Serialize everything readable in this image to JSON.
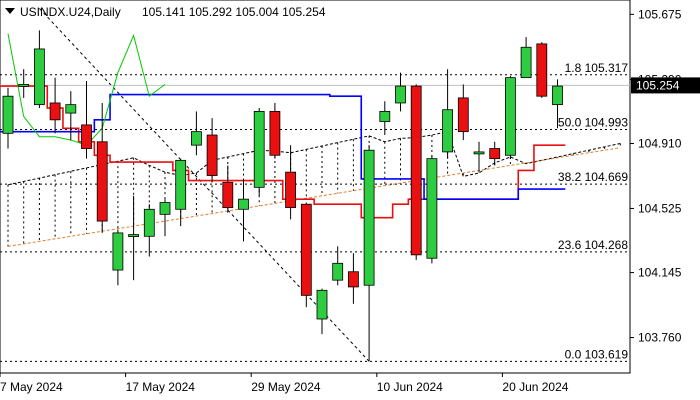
{
  "header": {
    "symbol": "USINDX.U24,Daily",
    "ohlc": "105.141 105.292 105.004 105.254"
  },
  "colors": {
    "bull": "#2ecc40",
    "bear": "#e81010",
    "tenkan": "#e81010",
    "kijun": "#0000ff",
    "chikou": "#00cc00",
    "price_line": "#c0c0c0",
    "price_badge_bg": "#000000",
    "price_badge_fg": "#ffffff"
  },
  "chart_data": {
    "type": "candlestick",
    "ylim": [
      103.55,
      105.76
    ],
    "yticks": [
      "105.675",
      "105.290",
      "104.910",
      "104.525",
      "104.145",
      "103.760"
    ],
    "xticks": [
      "7 May 2024",
      "17 May 2024",
      "29 May 2024",
      "10 Jun 2024",
      "20 Jun 2024"
    ],
    "current_price": "105.254",
    "fibonacci": [
      {
        "label": "1.8 105.317",
        "value": 105.317
      },
      {
        "label": "50.0 104.993",
        "value": 104.993
      },
      {
        "label": "38.2 104.669",
        "value": 104.669
      },
      {
        "label": "23.6 104.268",
        "value": 104.268
      },
      {
        "label": "0.0 103.619",
        "value": 103.619
      }
    ],
    "candles": [
      {
        "o": 104.97,
        "h": 105.24,
        "l": 104.88,
        "c": 105.19
      },
      {
        "o": 105.26,
        "h": 105.35,
        "l": 105.18,
        "c": 105.26
      },
      {
        "o": 105.14,
        "h": 105.58,
        "l": 105.12,
        "c": 105.47
      },
      {
        "o": 105.15,
        "h": 105.3,
        "l": 104.97,
        "c": 105.05
      },
      {
        "o": 105.09,
        "h": 105.22,
        "l": 104.93,
        "c": 105.14
      },
      {
        "o": 105.02,
        "h": 105.28,
        "l": 104.82,
        "c": 104.88
      },
      {
        "o": 104.92,
        "h": 105.15,
        "l": 104.38,
        "c": 104.45
      },
      {
        "o": 104.16,
        "h": 104.4,
        "l": 104.07,
        "c": 104.38
      },
      {
        "o": 104.37,
        "h": 104.6,
        "l": 104.1,
        "c": 104.37
      },
      {
        "o": 104.36,
        "h": 104.55,
        "l": 104.24,
        "c": 104.52
      },
      {
        "o": 104.49,
        "h": 104.58,
        "l": 104.36,
        "c": 104.56
      },
      {
        "o": 104.52,
        "h": 104.82,
        "l": 104.42,
        "c": 104.81
      },
      {
        "o": 104.9,
        "h": 105.1,
        "l": 104.84,
        "c": 104.98
      },
      {
        "o": 104.96,
        "h": 105.06,
        "l": 104.68,
        "c": 104.72
      },
      {
        "o": 104.68,
        "h": 104.78,
        "l": 104.5,
        "c": 104.53
      },
      {
        "o": 104.52,
        "h": 104.7,
        "l": 104.33,
        "c": 104.58
      },
      {
        "o": 104.65,
        "h": 105.12,
        "l": 104.6,
        "c": 105.1
      },
      {
        "o": 105.1,
        "h": 105.15,
        "l": 104.82,
        "c": 104.84
      },
      {
        "o": 104.74,
        "h": 104.9,
        "l": 104.46,
        "c": 104.53
      },
      {
        "o": 104.55,
        "h": 104.56,
        "l": 103.94,
        "c": 104.01
      },
      {
        "o": 103.87,
        "h": 104.05,
        "l": 103.78,
        "c": 104.04
      },
      {
        "o": 104.1,
        "h": 104.3,
        "l": 104.07,
        "c": 104.2
      },
      {
        "o": 104.15,
        "h": 104.26,
        "l": 103.96,
        "c": 104.06
      },
      {
        "o": 104.07,
        "h": 104.9,
        "l": 103.62,
        "c": 104.87
      },
      {
        "o": 105.04,
        "h": 105.16,
        "l": 104.96,
        "c": 105.1
      },
      {
        "o": 105.15,
        "h": 105.33,
        "l": 105.1,
        "c": 105.25
      },
      {
        "o": 105.25,
        "h": 105.26,
        "l": 104.22,
        "c": 104.25
      },
      {
        "o": 104.23,
        "h": 104.84,
        "l": 104.2,
        "c": 104.82
      },
      {
        "o": 104.86,
        "h": 105.35,
        "l": 104.82,
        "c": 105.11
      },
      {
        "o": 105.18,
        "h": 105.26,
        "l": 104.93,
        "c": 104.98
      },
      {
        "o": 104.86,
        "h": 104.92,
        "l": 104.74,
        "c": 104.86
      },
      {
        "o": 104.88,
        "h": 104.92,
        "l": 104.78,
        "c": 104.82
      },
      {
        "o": 104.84,
        "h": 105.31,
        "l": 104.82,
        "c": 105.3
      },
      {
        "o": 105.3,
        "h": 105.54,
        "l": 105.3,
        "c": 105.48
      },
      {
        "o": 105.5,
        "h": 105.51,
        "l": 105.18,
        "c": 105.19
      },
      {
        "o": 105.14,
        "h": 105.29,
        "l": 105.0,
        "c": 105.25
      }
    ],
    "tenkan": [
      105.25,
      105.25,
      105.25,
      105.12,
      105.0,
      104.92,
      104.84,
      104.8,
      104.8,
      104.8,
      104.8,
      104.75,
      104.69,
      104.69,
      104.69,
      104.69,
      104.69,
      104.69,
      104.58,
      104.58,
      104.55,
      104.55,
      104.55,
      104.47,
      104.47,
      104.55,
      104.58,
      104.58,
      104.58,
      104.58,
      104.58,
      104.58,
      104.58,
      104.75,
      104.9,
      104.9
    ],
    "kijun": [
      104.98,
      104.98,
      104.98,
      104.98,
      104.98,
      104.98,
      105.05,
      105.2,
      105.2,
      105.2,
      105.2,
      105.2,
      105.2,
      105.2,
      105.2,
      105.2,
      105.2,
      105.2,
      105.2,
      105.2,
      105.2,
      105.19,
      105.19,
      104.7,
      104.7,
      104.7,
      104.7,
      104.58,
      104.58,
      104.58,
      104.58,
      104.58,
      104.58,
      104.64,
      104.64,
      104.64
    ],
    "chikou": [
      105.56,
      105.07,
      104.95,
      104.95,
      104.93,
      104.9,
      105.0,
      105.33,
      105.55,
      105.19,
      105.26
    ]
  }
}
